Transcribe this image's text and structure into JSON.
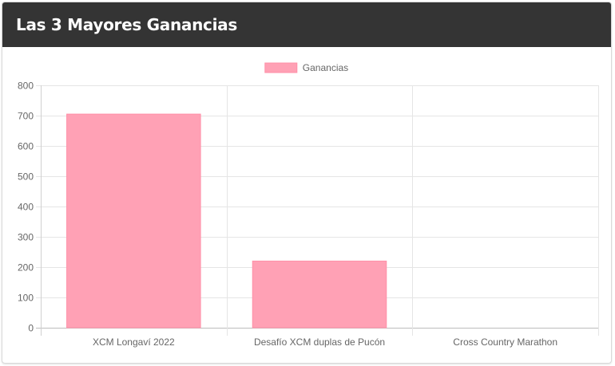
{
  "card": {
    "title": "Las 3 Mayores Ganancias"
  },
  "chart_data": {
    "type": "bar",
    "categories": [
      "XCM Longaví 2022",
      "Desafío XCM duplas de Pucón",
      "Cross Country Marathon"
    ],
    "series": [
      {
        "name": "Ganancias",
        "values": [
          705,
          220,
          0
        ],
        "color": "#ffa1b5",
        "border_color": "#ff90a8"
      }
    ],
    "ylim": [
      0,
      800
    ],
    "yticks": [
      0,
      100,
      200,
      300,
      400,
      500,
      600,
      700,
      800
    ],
    "legend": {
      "position": "top"
    },
    "grid": true,
    "grid_color": "#e5e5e5"
  }
}
